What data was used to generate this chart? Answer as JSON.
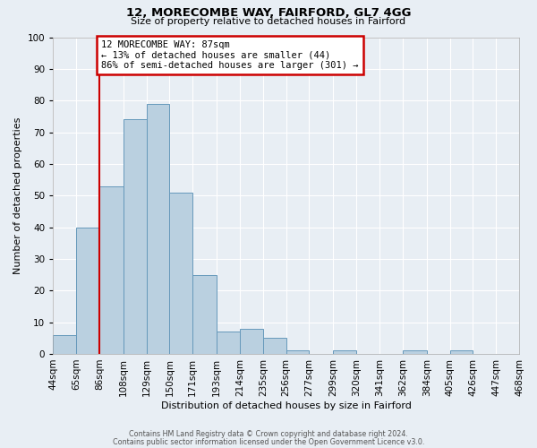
{
  "title1": "12, MORECOMBE WAY, FAIRFORD, GL7 4GG",
  "title2": "Size of property relative to detached houses in Fairford",
  "xlabel": "Distribution of detached houses by size in Fairford",
  "ylabel": "Number of detached properties",
  "bin_labels": [
    "44sqm",
    "65sqm",
    "86sqm",
    "108sqm",
    "129sqm",
    "150sqm",
    "171sqm",
    "193sqm",
    "214sqm",
    "235sqm",
    "256sqm",
    "277sqm",
    "299sqm",
    "320sqm",
    "341sqm",
    "362sqm",
    "384sqm",
    "405sqm",
    "426sqm",
    "447sqm",
    "468sqm"
  ],
  "bin_edges": [
    44,
    65,
    86,
    108,
    129,
    150,
    171,
    193,
    214,
    235,
    256,
    277,
    299,
    320,
    341,
    362,
    384,
    405,
    426,
    447,
    468
  ],
  "bar_heights": [
    6,
    40,
    53,
    74,
    79,
    51,
    25,
    7,
    8,
    5,
    1,
    0,
    1,
    0,
    0,
    1,
    0,
    1,
    0,
    0
  ],
  "bar_facecolor": "#bad0e0",
  "bar_edgecolor": "#6699bb",
  "vline_x": 86,
  "vline_color": "#cc0000",
  "ylim": [
    0,
    100
  ],
  "yticks": [
    0,
    10,
    20,
    30,
    40,
    50,
    60,
    70,
    80,
    90,
    100
  ],
  "annotation_title": "12 MORECOMBE WAY: 87sqm",
  "annotation_line1": "← 13% of detached houses are smaller (44)",
  "annotation_line2": "86% of semi-detached houses are larger (301) →",
  "annotation_box_color": "#cc0000",
  "background_color": "#e8eef4",
  "grid_color": "#ffffff",
  "footer1": "Contains HM Land Registry data © Crown copyright and database right 2024.",
  "footer2": "Contains public sector information licensed under the Open Government Licence v3.0."
}
